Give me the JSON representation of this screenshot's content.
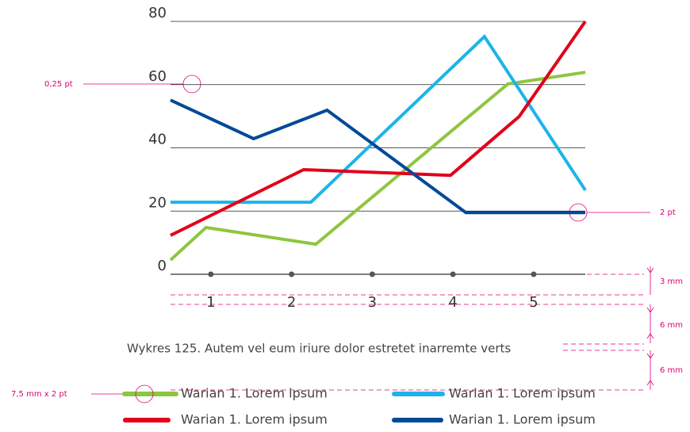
{
  "chart_data": {
    "type": "line",
    "caption": "Wykres 125. Autem vel eum iriure dolor estretet inarremte verts",
    "xlim": [
      0.5,
      5.64
    ],
    "xticks": [
      1,
      2,
      3,
      4,
      5
    ],
    "ylim": [
      0,
      80
    ],
    "yticks": [
      0,
      20,
      40,
      60,
      80
    ],
    "grid": true,
    "series": [
      {
        "name": "Warian 1. Lorem ipsum",
        "color": "#8dc63f",
        "x": [
          0.5,
          0.94,
          2.3,
          4.68,
          5.64
        ],
        "values": [
          4.5,
          14.8,
          9.5,
          60.2,
          63.9
        ]
      },
      {
        "name": "Warian 1. Lorem ipsum",
        "color": "#1cb4e8",
        "x": [
          0.5,
          2.24,
          4.39,
          5.64
        ],
        "values": [
          22.8,
          22.8,
          75.2,
          26.6
        ]
      },
      {
        "name": "Warian 1. Lorem ipsum",
        "color": "#e2001a",
        "x": [
          0.5,
          2.15,
          3.97,
          4.82,
          5.64
        ],
        "values": [
          12.3,
          33.1,
          31.3,
          49.9,
          80
        ]
      },
      {
        "name": "Warian 1. Lorem ipsum",
        "color": "#004a97",
        "x": [
          0.5,
          1.53,
          2.44,
          4.16,
          5.64
        ],
        "values": [
          55.1,
          42.9,
          51.9,
          19.5,
          19.5
        ]
      }
    ],
    "annotations": [
      "0,25 pt",
      "2 pt",
      "3 mm",
      "6 mm",
      "6 mm",
      "7,5 mm x 2 pt"
    ]
  }
}
